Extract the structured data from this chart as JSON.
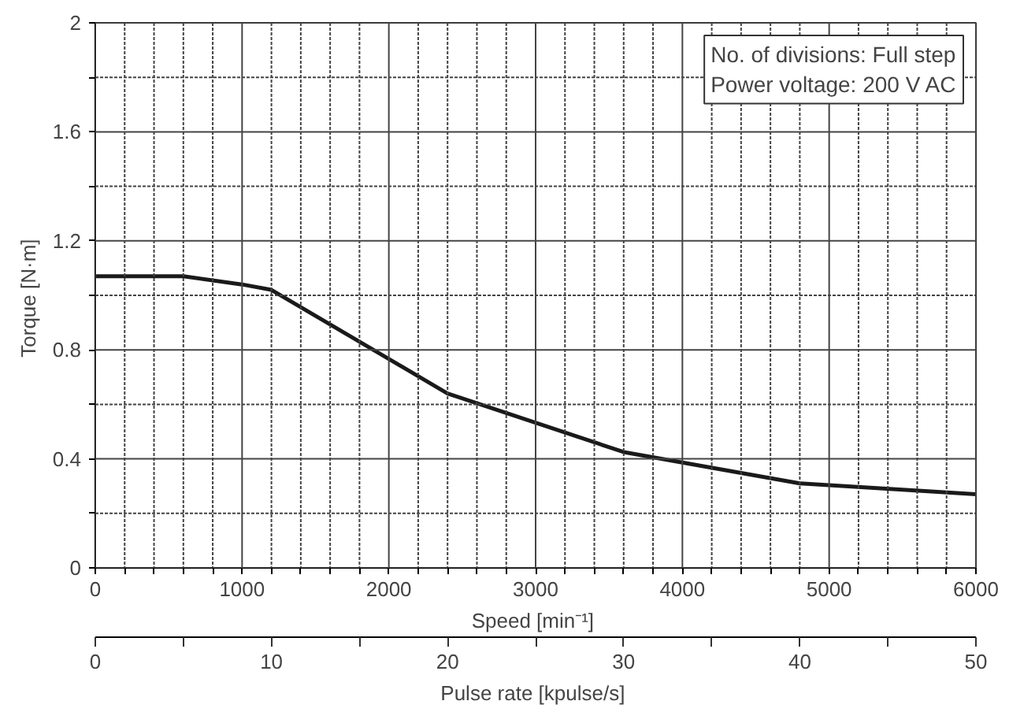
{
  "chart_data": {
    "type": "line",
    "xlabel": "Speed  [min⁻¹]",
    "ylabel": "Torque  [N·m]",
    "x2label": "Pulse rate  [kpulse/s]",
    "x": [
      0,
      600,
      1000,
      1200,
      2400,
      3600,
      4800,
      6000
    ],
    "series": [
      {
        "color": "#1a1a1a",
        "values": [
          1.07,
          1.07,
          1.04,
          1.02,
          0.64,
          0.425,
          0.31,
          0.27
        ]
      }
    ],
    "xlim": [
      0,
      6000
    ],
    "ylim": [
      0,
      2
    ],
    "x2lim": [
      0,
      50
    ],
    "xticks": [
      0,
      {
        "value": 200,
        "label": null
      },
      {
        "value": 400,
        "label": null
      },
      {
        "value": 600,
        "label": null
      },
      {
        "value": 800,
        "label": null
      },
      1000,
      {
        "value": 1200,
        "label": null
      },
      {
        "value": 1400,
        "label": null
      },
      {
        "value": 1600,
        "label": null
      },
      {
        "value": 1800,
        "label": null
      },
      2000,
      {
        "value": 2200,
        "label": null
      },
      {
        "value": 2400,
        "label": null
      },
      {
        "value": 2600,
        "label": null
      },
      {
        "value": 2800,
        "label": null
      },
      3000,
      {
        "value": 3200,
        "label": null
      },
      {
        "value": 3400,
        "label": null
      },
      {
        "value": 3600,
        "label": null
      },
      {
        "value": 3800,
        "label": null
      },
      4000,
      {
        "value": 4200,
        "label": null
      },
      {
        "value": 4400,
        "label": null
      },
      {
        "value": 4600,
        "label": null
      },
      {
        "value": 4800,
        "label": null
      },
      5000,
      {
        "value": 5200,
        "label": null
      },
      {
        "value": 5400,
        "label": null
      },
      {
        "value": 5600,
        "label": null
      },
      {
        "value": 5800,
        "label": null
      },
      6000
    ],
    "yticks": [
      0,
      {
        "value": 0.2,
        "label": null
      },
      0.4,
      {
        "value": 0.6,
        "label": null
      },
      0.8,
      {
        "value": 1.0,
        "label": null
      },
      1.2,
      {
        "value": 1.4,
        "label": null
      },
      1.6,
      {
        "value": 1.8,
        "label": null
      },
      2
    ],
    "x2ticks": [
      0,
      {
        "value": 5,
        "label": null
      },
      10,
      {
        "value": 15,
        "label": null
      },
      20,
      {
        "value": 25,
        "label": null
      },
      30,
      {
        "value": 35,
        "label": null
      },
      40,
      {
        "value": 45,
        "label": null
      },
      50
    ],
    "annotations": [
      "No. of divisions: Full step",
      "Power voltage: 200 V AC"
    ],
    "grid": true,
    "marker": "none",
    "line_style": "solid"
  }
}
